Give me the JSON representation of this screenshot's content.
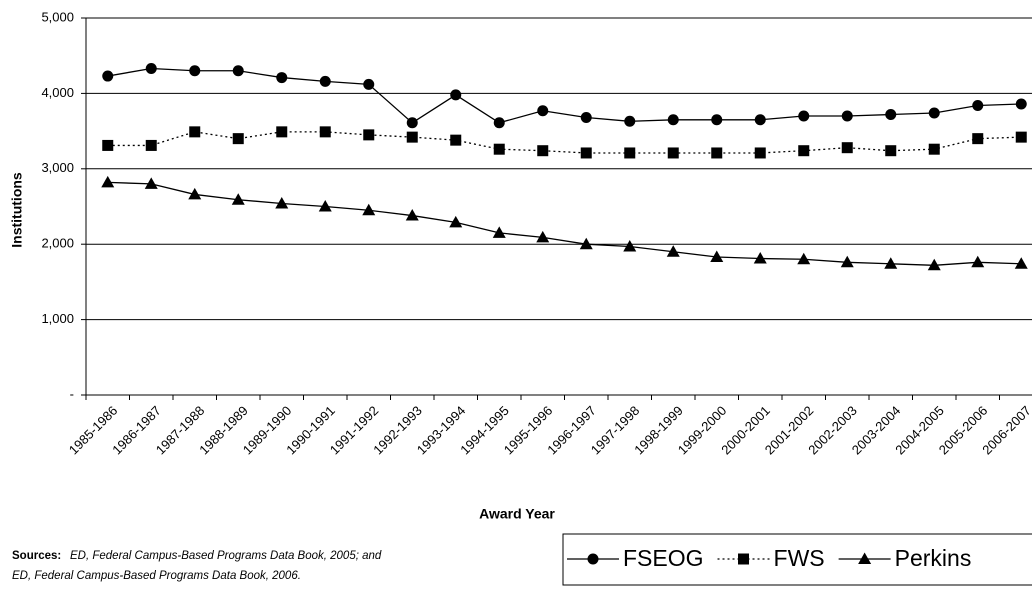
{
  "chart_data": {
    "type": "line",
    "x_label": "Award Year",
    "y_label": "Institutions",
    "categories": [
      "1985-1986",
      "1986-1987",
      "1987-1988",
      "1988-1989",
      "1989-1990",
      "1990-1991",
      "1991-1992",
      "1992-1993",
      "1993-1994",
      "1994-1995",
      "1995-1996",
      "1996-1997",
      "1997-1998",
      "1998-1999",
      "1999-2000",
      "2000-2001",
      "2001-2002",
      "2002-2003",
      "2003-2004",
      "2004-2005",
      "2005-2006",
      "2006-2007"
    ],
    "series": [
      {
        "name": "FSEOG",
        "color": "#000000",
        "marker": "circle",
        "line_style": "solid",
        "values": [
          4230,
          4330,
          4300,
          4300,
          4210,
          4160,
          4120,
          3610,
          3980,
          3610,
          3770,
          3680,
          3630,
          3650,
          3650,
          3650,
          3700,
          3700,
          3720,
          3740,
          3840,
          3860
        ]
      },
      {
        "name": "FWS",
        "color": "#000000",
        "marker": "square",
        "line_style": "dotted",
        "values": [
          3310,
          3310,
          3490,
          3400,
          3490,
          3490,
          3450,
          3420,
          3380,
          3260,
          3240,
          3210,
          3210,
          3210,
          3210,
          3210,
          3240,
          3280,
          3240,
          3260,
          3400,
          3420
        ]
      },
      {
        "name": "Perkins",
        "color": "#000000",
        "marker": "triangle",
        "line_style": "solid",
        "values": [
          2820,
          2800,
          2660,
          2590,
          2540,
          2500,
          2450,
          2380,
          2290,
          2150,
          2090,
          2000,
          1970,
          1900,
          1830,
          1810,
          1800,
          1760,
          1740,
          1720,
          1760,
          1740
        ]
      }
    ],
    "ylim": [
      0,
      5000
    ],
    "yticks": [
      {
        "value": 0,
        "label": "-"
      },
      {
        "value": 1000,
        "label": "1,000"
      },
      {
        "value": 2000,
        "label": "2,000"
      },
      {
        "value": 3000,
        "label": "3,000"
      },
      {
        "value": 4000,
        "label": "4,000"
      },
      {
        "value": 5000,
        "label": "5,000"
      }
    ],
    "grid": true,
    "legend_position": "bottom-right",
    "source_label": "Sources:",
    "source_lines": [
      "ED, Federal Campus-Based Programs Data Book, 2005; and",
      "ED, Federal Campus-Based Programs Data Book, 2006."
    ]
  }
}
